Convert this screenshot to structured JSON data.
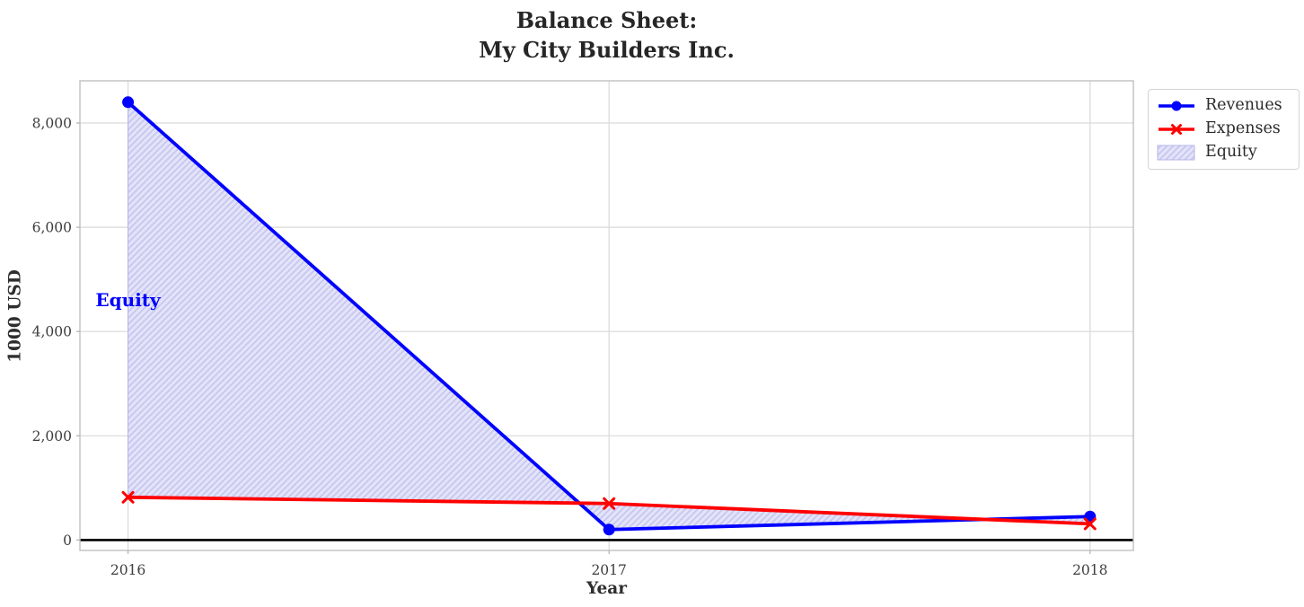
{
  "chart_data": {
    "type": "line",
    "title": "Balance Sheet:\nMy City Builders Inc.",
    "xlabel": "Year",
    "ylabel": "1000 USD",
    "x": [
      2016,
      2017,
      2018
    ],
    "xtick_labels": [
      "2016",
      "2017",
      "2018"
    ],
    "yticks": [
      0,
      2000,
      4000,
      6000,
      8000
    ],
    "ytick_labels": [
      "0",
      "2,000",
      "4,000",
      "6,000",
      "8,000"
    ],
    "xlim": [
      2015.9,
      2018.09
    ],
    "ylim": [
      -200,
      8810
    ],
    "grid": true,
    "zero_line_y": 0,
    "legend_position": "upper right, outside axes",
    "series": [
      {
        "name": "Revenues",
        "values": [
          8400,
          200,
          450
        ],
        "color": "#0000ff",
        "marker": "circle"
      },
      {
        "name": "Expenses",
        "values": [
          820,
          700,
          310
        ],
        "color": "#ff0000",
        "marker": "x"
      }
    ],
    "equity_fill": {
      "name": "Equity",
      "between": [
        "Revenues",
        "Expenses"
      ],
      "hatch": "//",
      "fill_color": "#e3e3f9",
      "hatch_color": "#c7c7f0",
      "edge_color": "#b4b4ea",
      "equity_values": [
        7580,
        -500,
        140
      ]
    },
    "annotation": {
      "text": "Equity",
      "x": 2016,
      "y": 4600,
      "color": "#0000ff"
    }
  },
  "colors": {
    "grid": "#d9d9d9",
    "frame": "#c0c0c0",
    "tick_mark": "#b0b0b0",
    "tick_text": "#3d3d3d",
    "zero_line": "#000000",
    "title_text": "#262626"
  }
}
